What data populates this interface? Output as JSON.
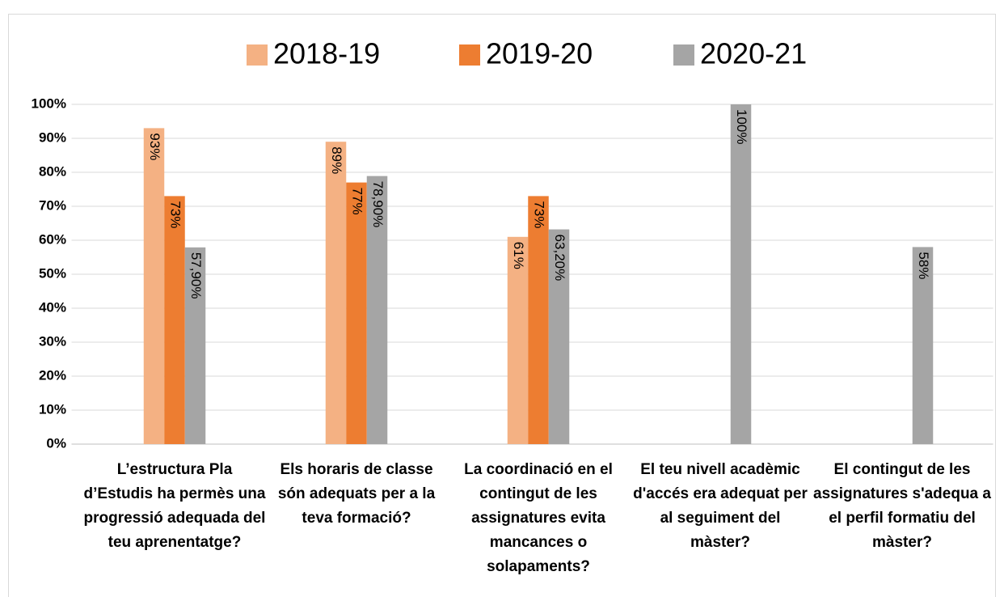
{
  "chart_data": {
    "type": "bar",
    "categories": [
      "L’estructura Pla d’Estudis ha permès una progressió adequada del teu aprenentatge?",
      "Els horaris de classe són adequats per a la teva formació?",
      "La coordinació en el contingut de les assignatures evita mancances o solapaments?",
      "El teu nivell acadèmic d'accés era adequat per al seguiment del màster?",
      "El contingut de les assignatures s'adequa a el perfil formatiu del màster?"
    ],
    "series": [
      {
        "name": "2018-19",
        "color": "#f4b183",
        "values": [
          93,
          89,
          61,
          null,
          null
        ],
        "value_labels": [
          "93%",
          "89%",
          "61%",
          null,
          null
        ]
      },
      {
        "name": "2019-20",
        "color": "#ed7d31",
        "values": [
          73,
          77,
          73,
          null,
          null
        ],
        "value_labels": [
          "73%",
          "77%",
          "73%",
          null,
          null
        ]
      },
      {
        "name": "2020-21",
        "color": "#a5a5a5",
        "values": [
          57.9,
          78.9,
          63.2,
          100,
          58
        ],
        "value_labels": [
          "57,90%",
          "78,90%",
          "63,20%",
          "100%",
          "58%"
        ]
      }
    ],
    "ylim": [
      0,
      100
    ],
    "yticks": [
      {
        "value": 0,
        "label": "0%"
      },
      {
        "value": 10,
        "label": "10%"
      },
      {
        "value": 20,
        "label": "20%"
      },
      {
        "value": 30,
        "label": "30%"
      },
      {
        "value": 40,
        "label": "40%"
      },
      {
        "value": 50,
        "label": "50%"
      },
      {
        "value": 60,
        "label": "60%"
      },
      {
        "value": 70,
        "label": "70%"
      },
      {
        "value": 80,
        "label": "80%"
      },
      {
        "value": 90,
        "label": "90%"
      },
      {
        "value": 100,
        "label": "100%"
      }
    ],
    "grid": true,
    "legend": "top"
  }
}
